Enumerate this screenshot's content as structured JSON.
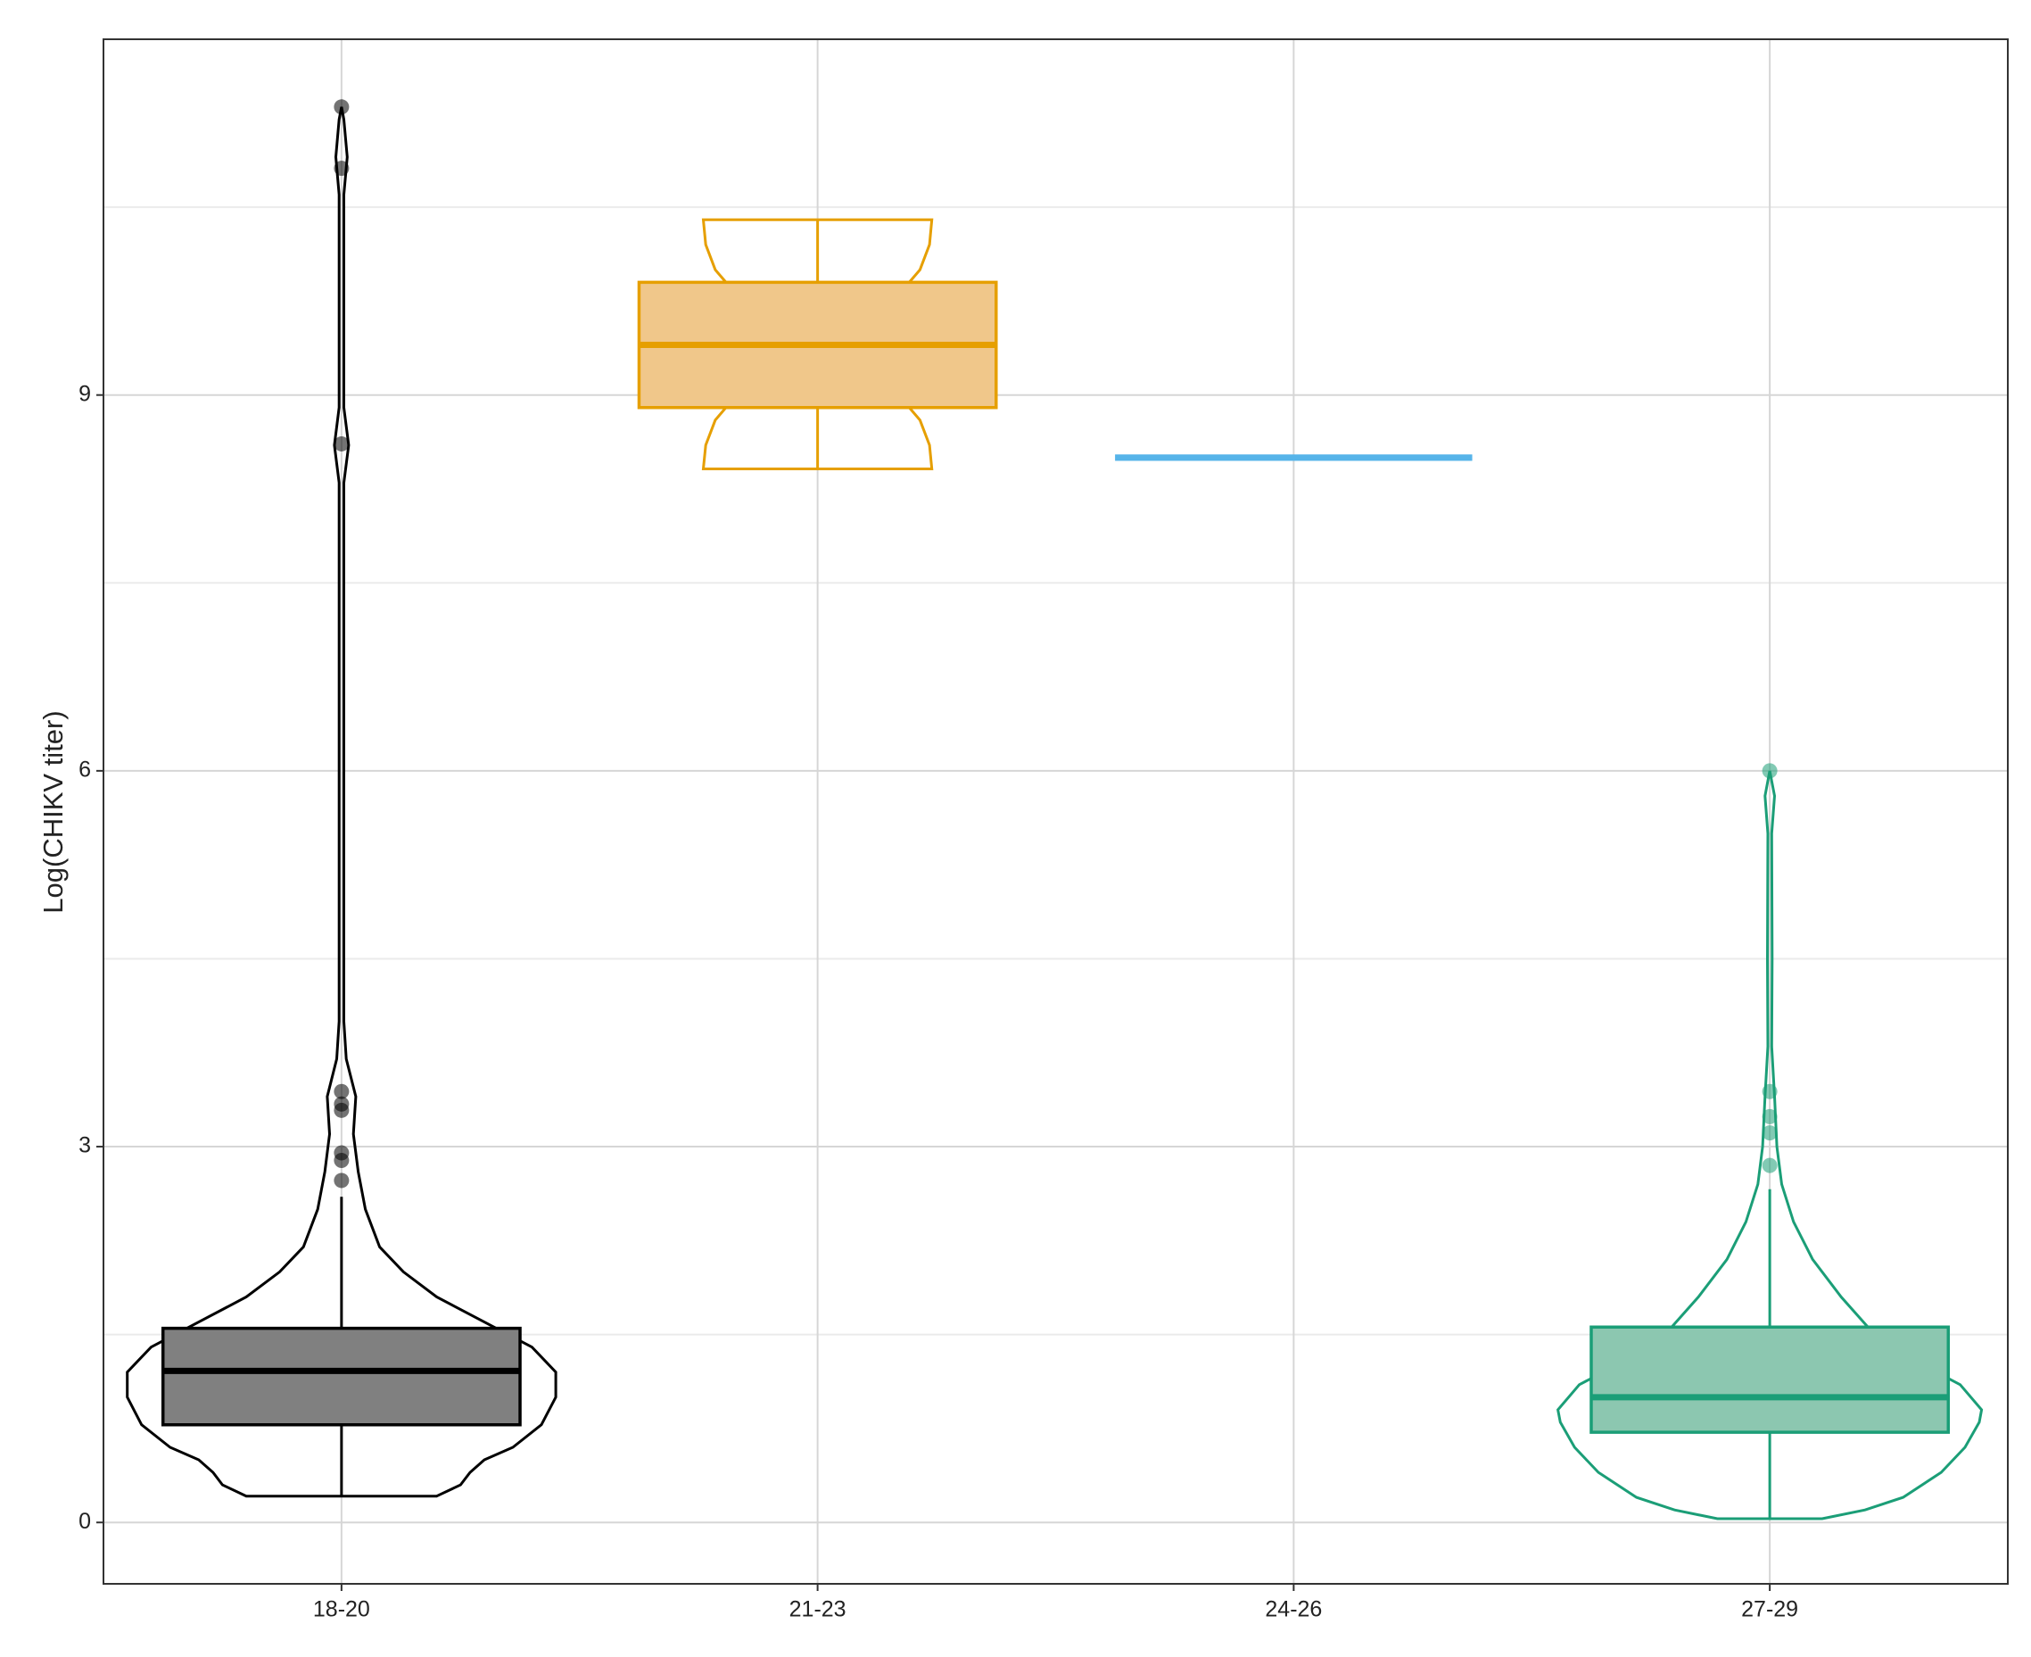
{
  "chart_data": {
    "type": "violin",
    "ylabel": "Log(CHIKV titer)",
    "categories": [
      "18-20",
      "21-23",
      "24-26",
      "27-29"
    ],
    "ylim": [
      -0.49,
      11.84
    ],
    "yticks": [
      0,
      3,
      6,
      9
    ],
    "minor_grid": [
      1.5,
      4.5,
      7.5,
      10.5
    ],
    "grid": true,
    "groups": [
      {
        "color": "#000000",
        "fill": "#808080",
        "box": {
          "whisker_low": 0.21,
          "q1": 0.78,
          "median": 1.21,
          "q3": 1.55,
          "whisker_high": 2.6
        },
        "outliers": [
          2.73,
          2.89,
          2.95,
          3.29,
          3.34,
          3.44,
          8.61,
          10.81,
          11.3
        ],
        "violin": {
          "y": [
            0.21,
            0.3,
            0.4,
            0.5,
            0.6,
            0.78,
            1.0,
            1.2,
            1.4,
            1.6,
            1.8,
            2.0,
            2.2,
            2.5,
            2.8,
            3.1,
            3.4,
            3.7,
            4.0,
            8.3,
            8.6,
            8.9,
            10.6,
            10.9,
            11.2,
            11.3
          ],
          "width": [
            0.2,
            0.25,
            0.27,
            0.3,
            0.36,
            0.42,
            0.45,
            0.45,
            0.4,
            0.3,
            0.2,
            0.13,
            0.08,
            0.05,
            0.035,
            0.025,
            0.03,
            0.01,
            0.005,
            0.005,
            0.015,
            0.005,
            0.005,
            0.012,
            0.005,
            0
          ]
        }
      },
      {
        "color": "#e69f00",
        "fill": "#f0c78a",
        "box": {
          "whisker_low": 8.41,
          "q1": 8.9,
          "median": 9.4,
          "q3": 9.9,
          "whisker_high": 10.4
        },
        "outliers": [],
        "violin": {
          "y": [
            8.41,
            8.6,
            8.8,
            9.0,
            9.2,
            9.4,
            9.6,
            9.8,
            10.0,
            10.2,
            10.4
          ],
          "width": [
            0.24,
            0.235,
            0.215,
            0.17,
            0.125,
            0.11,
            0.125,
            0.17,
            0.215,
            0.235,
            0.24
          ]
        }
      },
      {
        "color": "#56b4e9",
        "fill": "#56b4e9",
        "box": {
          "whisker_low": 8.5,
          "q1": 8.5,
          "median": 8.5,
          "q3": 8.5,
          "whisker_high": 8.5
        },
        "outliers": [],
        "violin": {
          "y": [],
          "width": []
        }
      },
      {
        "color": "#1b9e77",
        "fill": "#8cc7b0",
        "box": {
          "whisker_low": 0.03,
          "q1": 0.72,
          "median": 1.0,
          "q3": 1.56,
          "whisker_high": 2.66
        },
        "outliers": [
          2.85,
          3.11,
          3.24,
          3.44,
          6.0
        ],
        "violin": {
          "y": [
            0.03,
            0.1,
            0.2,
            0.4,
            0.6,
            0.8,
            0.9,
            1.1,
            1.3,
            1.5,
            1.8,
            2.1,
            2.4,
            2.7,
            3.0,
            3.4,
            3.8,
            4.5,
            5.5,
            5.8,
            6.0
          ],
          "width": [
            0.11,
            0.2,
            0.28,
            0.36,
            0.41,
            0.44,
            0.445,
            0.4,
            0.3,
            0.22,
            0.15,
            0.09,
            0.05,
            0.025,
            0.015,
            0.01,
            0.004,
            0.005,
            0.004,
            0.01,
            0
          ]
        }
      }
    ]
  }
}
